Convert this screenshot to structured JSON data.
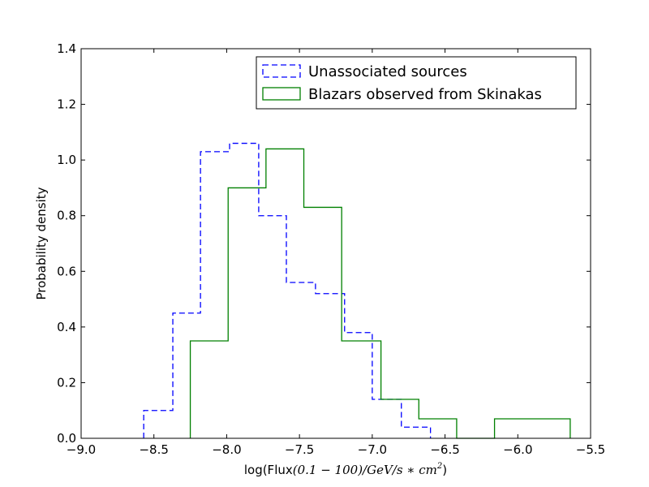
{
  "chart_data": {
    "type": "step",
    "title": "",
    "xlabel": {
      "prefix": "log(Flux",
      "math": "(0.1 − 100)/GeV/s ∗ cm",
      "sup": "2",
      "suffix": ")"
    },
    "ylabel": "Probability density",
    "xlim": [
      -9.0,
      -5.5
    ],
    "ylim": [
      0.0,
      1.4
    ],
    "xticks": [
      -9.0,
      -8.5,
      -8.0,
      -7.5,
      -7.0,
      -6.5,
      -6.0,
      -5.5
    ],
    "xtick_labels": [
      "−9.0",
      "−8.5",
      "−8.0",
      "−7.5",
      "−7.0",
      "−6.5",
      "−6.0",
      "−5.5"
    ],
    "yticks": [
      0.0,
      0.2,
      0.4,
      0.6,
      0.8,
      1.0,
      1.2,
      1.4
    ],
    "ytick_labels": [
      "0.0",
      "0.2",
      "0.4",
      "0.6",
      "0.8",
      "1.0",
      "1.2",
      "1.4"
    ],
    "grid": false,
    "legend_position": "top-right",
    "series": [
      {
        "name": "Unassociated sources",
        "color": "#0000ff",
        "linestyle": "dashed",
        "bin_edges": [
          -8.57,
          -8.37,
          -8.18,
          -7.98,
          -7.78,
          -7.59,
          -7.39,
          -7.19,
          -7.0,
          -6.8,
          -6.6
        ],
        "values": [
          0.1,
          0.45,
          1.03,
          1.06,
          0.8,
          0.56,
          0.52,
          0.38,
          0.14,
          0.04
        ]
      },
      {
        "name": "Blazars observed from Skinakas",
        "color": "#008000",
        "linestyle": "solid",
        "bin_edges": [
          -8.25,
          -7.99,
          -7.73,
          -7.47,
          -7.21,
          -6.94,
          -6.68,
          -6.42,
          -6.16,
          -5.9,
          -5.64
        ],
        "values": [
          0.35,
          0.9,
          1.04,
          0.83,
          0.35,
          0.14,
          0.07,
          0.0,
          0.07,
          0.07
        ]
      }
    ]
  }
}
